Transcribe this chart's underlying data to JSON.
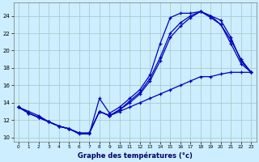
{
  "title": "Graphe des températures (°c)",
  "bg_color": "#cceeff",
  "grid_color": "#aacccc",
  "line_color": "#0000bb",
  "x_ticks": [
    0,
    1,
    2,
    3,
    4,
    5,
    6,
    7,
    8,
    9,
    10,
    11,
    12,
    13,
    14,
    15,
    16,
    17,
    18,
    19,
    20,
    21,
    22,
    23
  ],
  "y_ticks": [
    10,
    12,
    14,
    16,
    18,
    20,
    22,
    24
  ],
  "xlim": [
    -0.5,
    23.5
  ],
  "ylim": [
    9.5,
    25.5
  ],
  "line1_x": [
    0,
    1,
    2,
    3,
    4,
    5,
    6,
    7,
    8,
    9,
    10,
    11,
    12,
    13,
    14,
    15,
    16,
    17,
    18,
    19,
    20,
    21,
    22,
    23
  ],
  "line1_y": [
    13.5,
    13.0,
    12.5,
    11.8,
    11.3,
    11.0,
    10.4,
    10.4,
    14.5,
    12.8,
    13.5,
    14.5,
    15.5,
    17.2,
    20.8,
    23.8,
    24.3,
    24.3,
    24.5,
    24.0,
    23.0,
    21.2,
    19.0,
    17.5
  ],
  "line2_x": [
    0,
    1,
    2,
    3,
    4,
    5,
    6,
    7,
    8,
    9,
    10,
    11,
    12,
    13,
    14,
    15,
    16,
    17,
    18,
    19,
    20,
    21,
    22,
    23
  ],
  "line2_y": [
    13.5,
    12.8,
    12.3,
    11.8,
    11.3,
    11.0,
    10.5,
    10.5,
    13.0,
    12.5,
    13.2,
    14.2,
    15.2,
    16.8,
    19.2,
    22.0,
    23.2,
    24.0,
    24.5,
    24.0,
    23.5,
    21.5,
    18.8,
    17.5
  ],
  "line3_x": [
    0,
    1,
    2,
    3,
    4,
    5,
    6,
    7,
    8,
    9,
    10,
    11,
    12,
    13,
    14,
    15,
    16,
    17,
    18,
    19,
    20,
    21,
    22,
    23
  ],
  "line3_y": [
    13.5,
    12.8,
    12.3,
    11.8,
    11.3,
    11.0,
    10.5,
    10.5,
    13.0,
    12.5,
    13.2,
    14.0,
    15.0,
    16.5,
    18.8,
    21.5,
    22.8,
    23.8,
    24.5,
    23.8,
    23.0,
    20.8,
    18.5,
    17.5
  ],
  "line4_x": [
    0,
    1,
    2,
    3,
    4,
    5,
    6,
    7,
    8,
    9,
    10,
    11,
    12,
    13,
    14,
    15,
    16,
    17,
    18,
    19,
    20,
    21,
    22,
    23
  ],
  "line4_y": [
    13.5,
    12.8,
    12.3,
    11.8,
    11.3,
    11.0,
    10.5,
    10.5,
    13.0,
    12.5,
    13.0,
    13.5,
    14.0,
    14.5,
    15.0,
    15.5,
    16.0,
    16.5,
    17.0,
    17.0,
    17.3,
    17.5,
    17.5,
    17.5
  ]
}
